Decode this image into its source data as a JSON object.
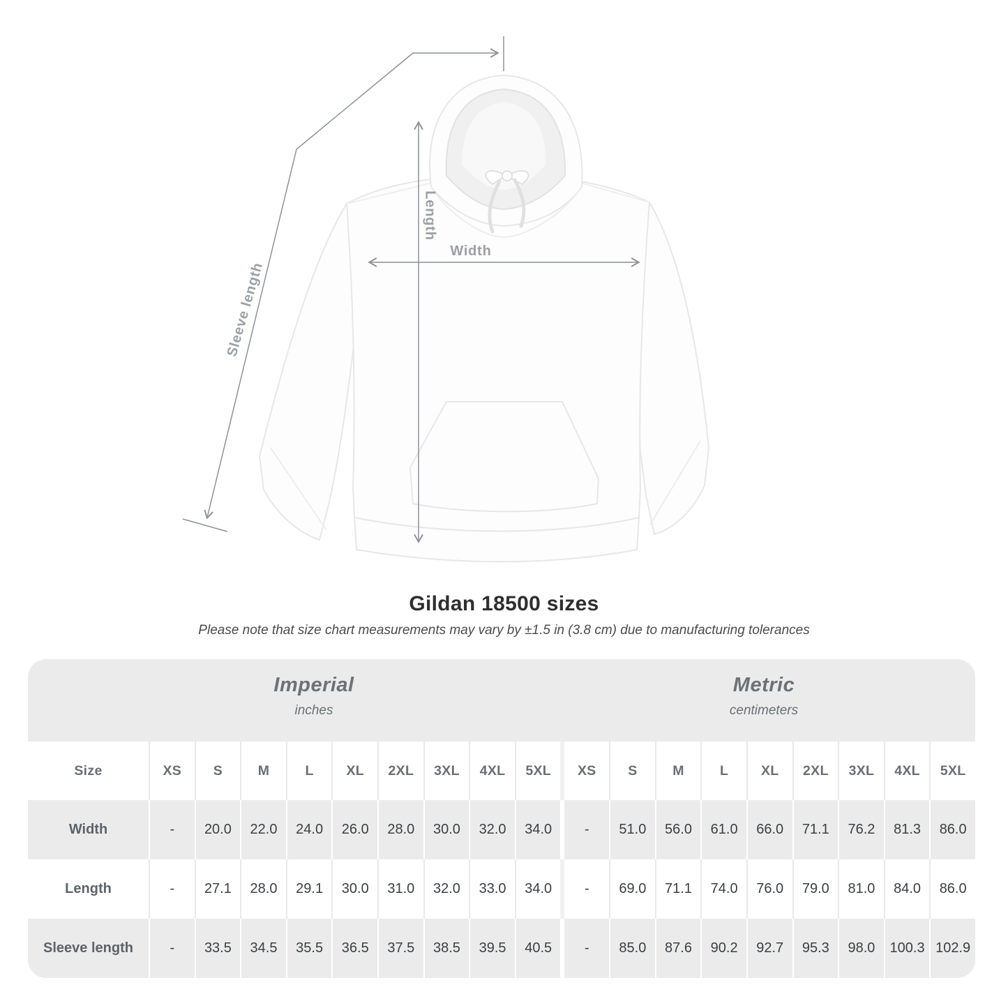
{
  "title": "Gildan 18500 sizes",
  "subtitle": "Please note that size chart measurements may vary by ±1.5 in (3.8 cm) due to manufacturing tolerances",
  "diagram": {
    "labels": {
      "length": "Length",
      "width": "Width",
      "sleeve": "Sleeve length"
    }
  },
  "table": {
    "size_header": "Size",
    "sizes": [
      "XS",
      "S",
      "M",
      "L",
      "XL",
      "2XL",
      "3XL",
      "4XL",
      "5XL"
    ],
    "sections": [
      {
        "title": "Imperial",
        "unit": "inches"
      },
      {
        "title": "Metric",
        "unit": "centimeters"
      }
    ],
    "rows": [
      {
        "label": "Width",
        "imperial": [
          "-",
          "20.0",
          "22.0",
          "24.0",
          "26.0",
          "28.0",
          "30.0",
          "32.0",
          "34.0"
        ],
        "metric": [
          "-",
          "51.0",
          "56.0",
          "61.0",
          "66.0",
          "71.1",
          "76.2",
          "81.3",
          "86.0"
        ]
      },
      {
        "label": "Length",
        "imperial": [
          "-",
          "27.1",
          "28.0",
          "29.1",
          "30.0",
          "31.0",
          "32.0",
          "33.0",
          "34.0"
        ],
        "metric": [
          "-",
          "69.0",
          "71.1",
          "74.0",
          "76.0",
          "79.0",
          "81.0",
          "84.0",
          "86.0"
        ]
      },
      {
        "label": "Sleeve length",
        "imperial": [
          "-",
          "33.5",
          "34.5",
          "35.5",
          "36.5",
          "37.5",
          "38.5",
          "39.5",
          "40.5"
        ],
        "metric": [
          "-",
          "85.0",
          "87.6",
          "90.2",
          "92.7",
          "95.3",
          "98.0",
          "100.3",
          "102.9"
        ]
      }
    ]
  },
  "chart_data": {
    "type": "table",
    "title": "Gildan 18500 sizes",
    "note": "Measurements may vary by ±1.5 in (3.8 cm) due to manufacturing tolerances",
    "columns": [
      "Size",
      "XS",
      "S",
      "M",
      "L",
      "XL",
      "2XL",
      "3XL",
      "4XL",
      "5XL"
    ],
    "imperial_inches": [
      {
        "label": "Width",
        "values": [
          null,
          20.0,
          22.0,
          24.0,
          26.0,
          28.0,
          30.0,
          32.0,
          34.0
        ]
      },
      {
        "label": "Length",
        "values": [
          null,
          27.1,
          28.0,
          29.1,
          30.0,
          31.0,
          32.0,
          33.0,
          34.0
        ]
      },
      {
        "label": "Sleeve length",
        "values": [
          null,
          33.5,
          34.5,
          35.5,
          36.5,
          37.5,
          38.5,
          39.5,
          40.5
        ]
      }
    ],
    "metric_centimeters": [
      {
        "label": "Width",
        "values": [
          null,
          51.0,
          56.0,
          61.0,
          66.0,
          71.1,
          76.2,
          81.3,
          86.0
        ]
      },
      {
        "label": "Length",
        "values": [
          null,
          69.0,
          71.1,
          74.0,
          76.0,
          79.0,
          81.0,
          84.0,
          86.0
        ]
      },
      {
        "label": "Sleeve length",
        "values": [
          null,
          85.0,
          87.6,
          90.2,
          92.7,
          95.3,
          98.0,
          100.3,
          102.9
        ]
      }
    ]
  },
  "colors": {
    "table_band": "#ebebeb",
    "header_text": "#6b7176",
    "data_text": "#3c4043",
    "measure_line": "#8c9296",
    "measure_label": "#9aa0a5",
    "title_text": "#2e2e2e"
  }
}
